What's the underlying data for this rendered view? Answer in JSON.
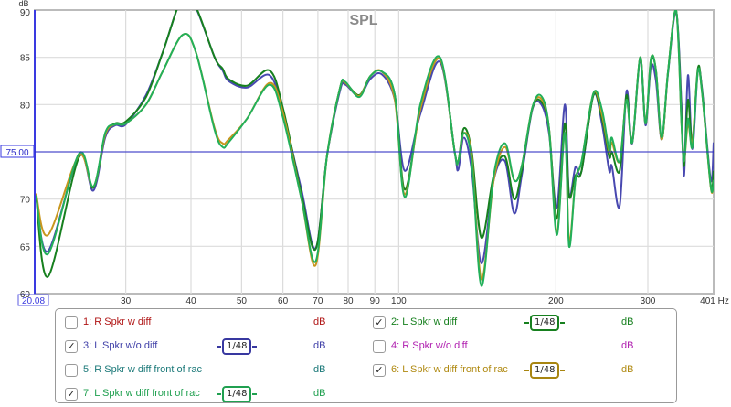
{
  "chart_data": {
    "type": "line",
    "title": "SPL",
    "ylabel": "dB",
    "xlabel": "Hz",
    "xscale": "log",
    "xlim": [
      20.08,
      401
    ],
    "ylim": [
      60,
      90
    ],
    "grid": true,
    "x_ticks": [
      30,
      40,
      50,
      60,
      70,
      80,
      90,
      100,
      200,
      300
    ],
    "x_tick_labels": [
      "30",
      "40",
      "50",
      "60",
      "70",
      "80",
      "90",
      "100",
      "200",
      "300"
    ],
    "x_start_label": "20.08",
    "x_end_label": "401 Hz",
    "y_ticks": [
      60,
      65,
      70,
      75,
      80,
      85,
      90
    ],
    "y_tick_labels": [
      "60",
      "65",
      "70",
      "75",
      "80",
      "85",
      "90"
    ],
    "cursor_value": 75.0,
    "cursor_label": "75.00",
    "cursor_color": "#2a2ac8",
    "x": [
      20.2,
      21.3,
      24.4,
      26.0,
      27.4,
      28.6,
      30.0,
      32.8,
      35.3,
      38.6,
      40.9,
      44.4,
      46.0,
      47.2,
      51.2,
      56.6,
      60.1,
      65.1,
      69.3,
      72.9,
      77.2,
      79.0,
      84.0,
      88.2,
      92.8,
      98.3,
      102.7,
      110,
      120,
      128,
      130,
      133.3,
      138,
      144,
      152,
      159.8,
      166.4,
      172,
      180.3,
      187.5,
      194,
      200.8,
      208,
      212,
      218,
      224,
      236,
      245,
      253,
      256,
      265,
      273,
      280,
      290,
      297,
      304,
      311,
      319,
      328,
      340,
      348,
      352,
      358,
      365,
      374,
      381,
      396,
      401
    ],
    "series": [
      {
        "name": "3: L Spkr w/o diff",
        "color": "#4848b0",
        "values": [
          70.2,
          64.5,
          74.6,
          70.9,
          76.5,
          77.8,
          77.9,
          81.0,
          85.5,
          91.5,
          90.2,
          85.0,
          83.6,
          82.5,
          81.8,
          83.1,
          79.0,
          71.0,
          64.8,
          74.6,
          81.5,
          82.1,
          80.9,
          82.7,
          83.2,
          80.5,
          73.0,
          79.0,
          84.5,
          75.0,
          73.1,
          76.5,
          73.0,
          63.2,
          72.0,
          74.0,
          68.5,
          72.5,
          79.5,
          80.0,
          77.0,
          69.1,
          80.0,
          70.5,
          73.4,
          73.0,
          81.0,
          78.0,
          73.0,
          73.5,
          69.3,
          81.4,
          75.9,
          84.8,
          77.8,
          84.0,
          82.5,
          76.3,
          83.3,
          89.8,
          80.0,
          72.5,
          83.1,
          75.3,
          83.5,
          81.7,
          72.0,
          76.0
        ]
      },
      {
        "name": "2: L Spkr w diff",
        "color": "#17801f",
        "values": [
          70.3,
          61.8,
          74.4,
          71.2,
          76.8,
          78.0,
          78.2,
          80.8,
          85.5,
          91.5,
          90.3,
          85.0,
          83.8,
          82.7,
          82.0,
          83.6,
          79.5,
          70.5,
          64.7,
          74.6,
          81.8,
          82.3,
          81.0,
          83.0,
          83.5,
          81.0,
          71.0,
          79.5,
          84.8,
          75.0,
          74.0,
          77.5,
          75.0,
          65.9,
          72.5,
          74.5,
          70.0,
          73.0,
          79.6,
          80.3,
          77.5,
          68.0,
          78.0,
          70.3,
          72.5,
          73.0,
          81.0,
          78.5,
          74.5,
          75.0,
          73.0,
          81.0,
          76.0,
          85.0,
          78.0,
          84.5,
          83.6,
          76.3,
          83.5,
          89.9,
          79.0,
          73.5,
          80.5,
          76.0,
          83.8,
          81.5,
          71.4,
          73.0
        ]
      },
      {
        "name": "6: L Spkr w diff front of rack",
        "color": "#c8961e",
        "values": [
          70.6,
          66.2,
          74.6,
          71.3,
          76.8,
          77.9,
          78.0,
          80.0,
          83.5,
          87.4,
          85.5,
          77.5,
          75.9,
          76.3,
          78.5,
          82.3,
          79.0,
          70.0,
          63.0,
          74.6,
          81.8,
          82.3,
          80.9,
          83.0,
          83.5,
          80.5,
          70.5,
          79.5,
          84.8,
          75.0,
          74.0,
          77.0,
          74.5,
          61.5,
          72.0,
          75.5,
          72.0,
          73.5,
          79.7,
          80.6,
          77.5,
          66.5,
          77.0,
          65.5,
          72.0,
          74.0,
          81.2,
          79.0,
          75.0,
          76.0,
          74.0,
          80.5,
          76.0,
          85.0,
          78.0,
          84.8,
          83.6,
          76.3,
          83.5,
          89.9,
          78.0,
          74.0,
          78.0,
          76.0,
          83.5,
          81.3,
          71.2,
          72.0
        ]
      },
      {
        "name": "7: L Spkr w diff front of rack",
        "color": "#22b05a",
        "values": [
          70.4,
          64.2,
          74.8,
          71.3,
          77.0,
          77.9,
          78.0,
          80.0,
          83.5,
          87.4,
          85.5,
          77.3,
          75.5,
          76.0,
          78.5,
          82.1,
          78.5,
          70.0,
          63.4,
          74.6,
          81.8,
          82.4,
          80.8,
          83.0,
          83.5,
          81.0,
          70.2,
          80.0,
          85.0,
          75.0,
          74.0,
          77.0,
          74.0,
          60.8,
          72.5,
          75.9,
          72.0,
          73.5,
          79.7,
          80.9,
          77.5,
          66.2,
          77.0,
          65.0,
          72.0,
          74.0,
          81.2,
          79.5,
          75.2,
          76.5,
          74.0,
          80.5,
          76.0,
          85.0,
          78.0,
          84.8,
          83.6,
          76.5,
          83.5,
          89.9,
          78.0,
          74.0,
          78.5,
          75.5,
          83.5,
          81.3,
          71.3,
          72.0
        ]
      }
    ]
  },
  "legend": {
    "items": [
      {
        "label": "1: R Spkr w diff",
        "unit": "dB",
        "checked": false,
        "color": "#b01515"
      },
      {
        "label": "2: L Spkr w diff",
        "unit": "dB",
        "checked": true,
        "color": "#17801f",
        "smoothing": "1/48"
      },
      {
        "label": "3: L Spkr w/o diff",
        "unit": "dB",
        "checked": true,
        "color": "#4040a8",
        "smoothing": "1/48"
      },
      {
        "label": "4: R Spkr w/o diff",
        "unit": "dB",
        "checked": false,
        "color": "#b020b0"
      },
      {
        "label": "5: R Spkr w diff front of rac",
        "unit": "dB",
        "checked": false,
        "color": "#1a7878"
      },
      {
        "label": "6: L Spkr w diff front of rac",
        "unit": "dB",
        "checked": true,
        "color": "#b08a12",
        "smoothing": "1/48"
      },
      {
        "label": "7: L Spkr w diff front of rac",
        "unit": "dB",
        "checked": true,
        "color": "#20a050",
        "smoothing": "1/48"
      }
    ]
  }
}
